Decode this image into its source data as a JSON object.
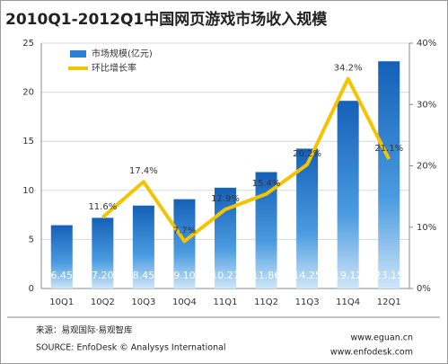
{
  "chart_data": {
    "type": "bar",
    "title": "2010Q1-2012Q1中国网页游戏市场收入规模",
    "categories": [
      "10Q1",
      "10Q2",
      "10Q3",
      "10Q4",
      "11Q1",
      "11Q2",
      "11Q3",
      "11Q4",
      "12Q1"
    ],
    "series": [
      {
        "name": "市场规模(亿元)",
        "type": "bar",
        "color": "#2a7fd0",
        "axis": "y",
        "values": [
          6.45,
          7.2,
          8.45,
          9.1,
          10.27,
          11.86,
          14.25,
          19.12,
          23.15
        ],
        "value_labels": [
          "6.45",
          "7.20",
          "8.45",
          "9.10",
          "10.27",
          "11.86",
          "14.25",
          "19.12",
          "23.15"
        ]
      },
      {
        "name": "环比增长率",
        "type": "line",
        "color": "#f5c400",
        "axis": "y2",
        "values": [
          null,
          11.6,
          17.4,
          7.7,
          12.9,
          15.4,
          20.2,
          34.2,
          21.1
        ],
        "value_labels": [
          null,
          "11.6%",
          "17.4%",
          "7.7%",
          "12.9%",
          "15.4%",
          "20.2%",
          "34.2%",
          "21.1%"
        ]
      }
    ],
    "ylim": [
      0,
      25
    ],
    "yticks": [
      0,
      5,
      10,
      15,
      20,
      25
    ],
    "y2lim": [
      0,
      40
    ],
    "y2ticks": [
      {
        "value": 0,
        "label": "0%"
      },
      {
        "value": 10,
        "label": "10%"
      },
      {
        "value": 20,
        "label": "20%"
      },
      {
        "value": 30,
        "label": "30%"
      },
      {
        "value": 40,
        "label": "40%"
      }
    ],
    "grid": true,
    "legend": "top-left",
    "source": [
      "来源：易观国际·易观智库",
      "SOURCE: EnfoDesk © Analysys International"
    ],
    "websites": [
      "www.eguan.cn",
      "www.enfodesk.com"
    ]
  }
}
